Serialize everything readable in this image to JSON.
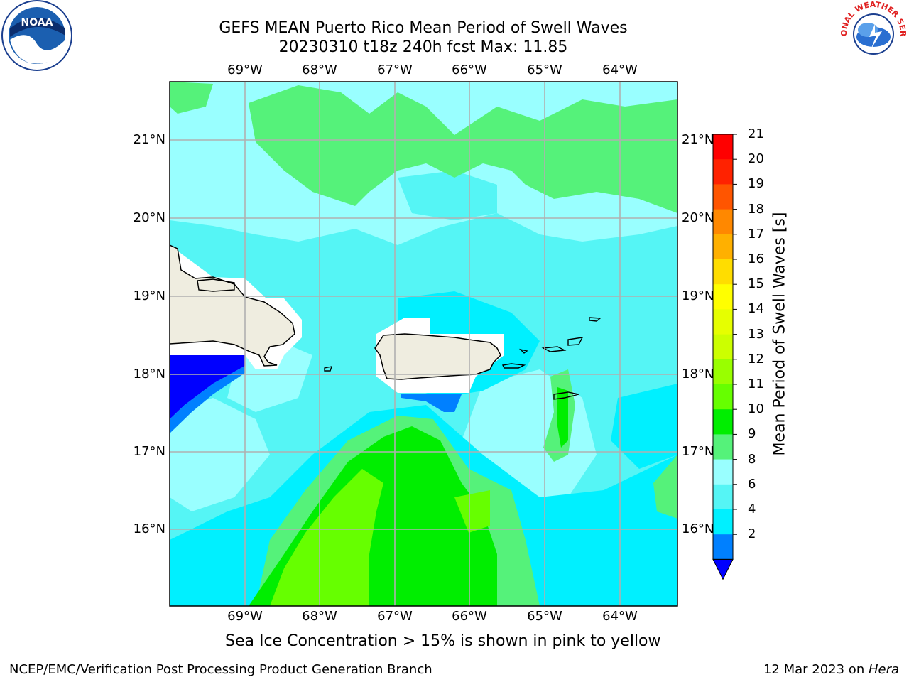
{
  "header": {
    "title_line1": "GEFS MEAN Puerto Rico Mean Period of Swell Waves",
    "title_line2": "20230310 t18z 240h fcst   Max: 11.85"
  },
  "axes": {
    "lon_labels": [
      "69°W",
      "68°W",
      "67°W",
      "66°W",
      "65°W",
      "64°W"
    ],
    "lat_labels": [
      "21°N",
      "20°N",
      "19°N",
      "18°N",
      "17°N",
      "16°N"
    ]
  },
  "colorbar": {
    "label": "Mean Period of Swell Waves [s]",
    "ticks": [
      "21",
      "20",
      "19",
      "18",
      "17",
      "16",
      "15",
      "14",
      "13",
      "12",
      "11",
      "10",
      "9",
      "8",
      "6",
      "4",
      "2"
    ],
    "colors": [
      "#ff0000",
      "#ff2200",
      "#ff5500",
      "#ff8800",
      "#ffb000",
      "#ffdd00",
      "#ffff00",
      "#e6ff00",
      "#ccff00",
      "#99ff00",
      "#66ff00",
      "#00ee00",
      "#55f27a",
      "#99ffff",
      "#55f5f5",
      "#00f0ff",
      "#0080ff",
      "#0000ff"
    ]
  },
  "caption": "Sea Ice Concentration > 15% is shown in pink to yellow",
  "footer": {
    "left": "NCEP/EMC/Verification Post Processing Product Generation Branch",
    "right_date": "12 Mar 2023 on ",
    "right_host": "Hera"
  },
  "logos": {
    "noaa": "NOAA",
    "nws": "NATIONAL WEATHER SERVICE"
  },
  "map_colors": {
    "land": "#efede0",
    "bg": "#99ffff",
    "cyan": "#55f5f5",
    "aqua": "#00f0ff",
    "green": "#55f27a",
    "bright_green": "#00ee00",
    "lime": "#66ff00",
    "blue": "#0000ff",
    "mid_blue": "#0080ff"
  }
}
